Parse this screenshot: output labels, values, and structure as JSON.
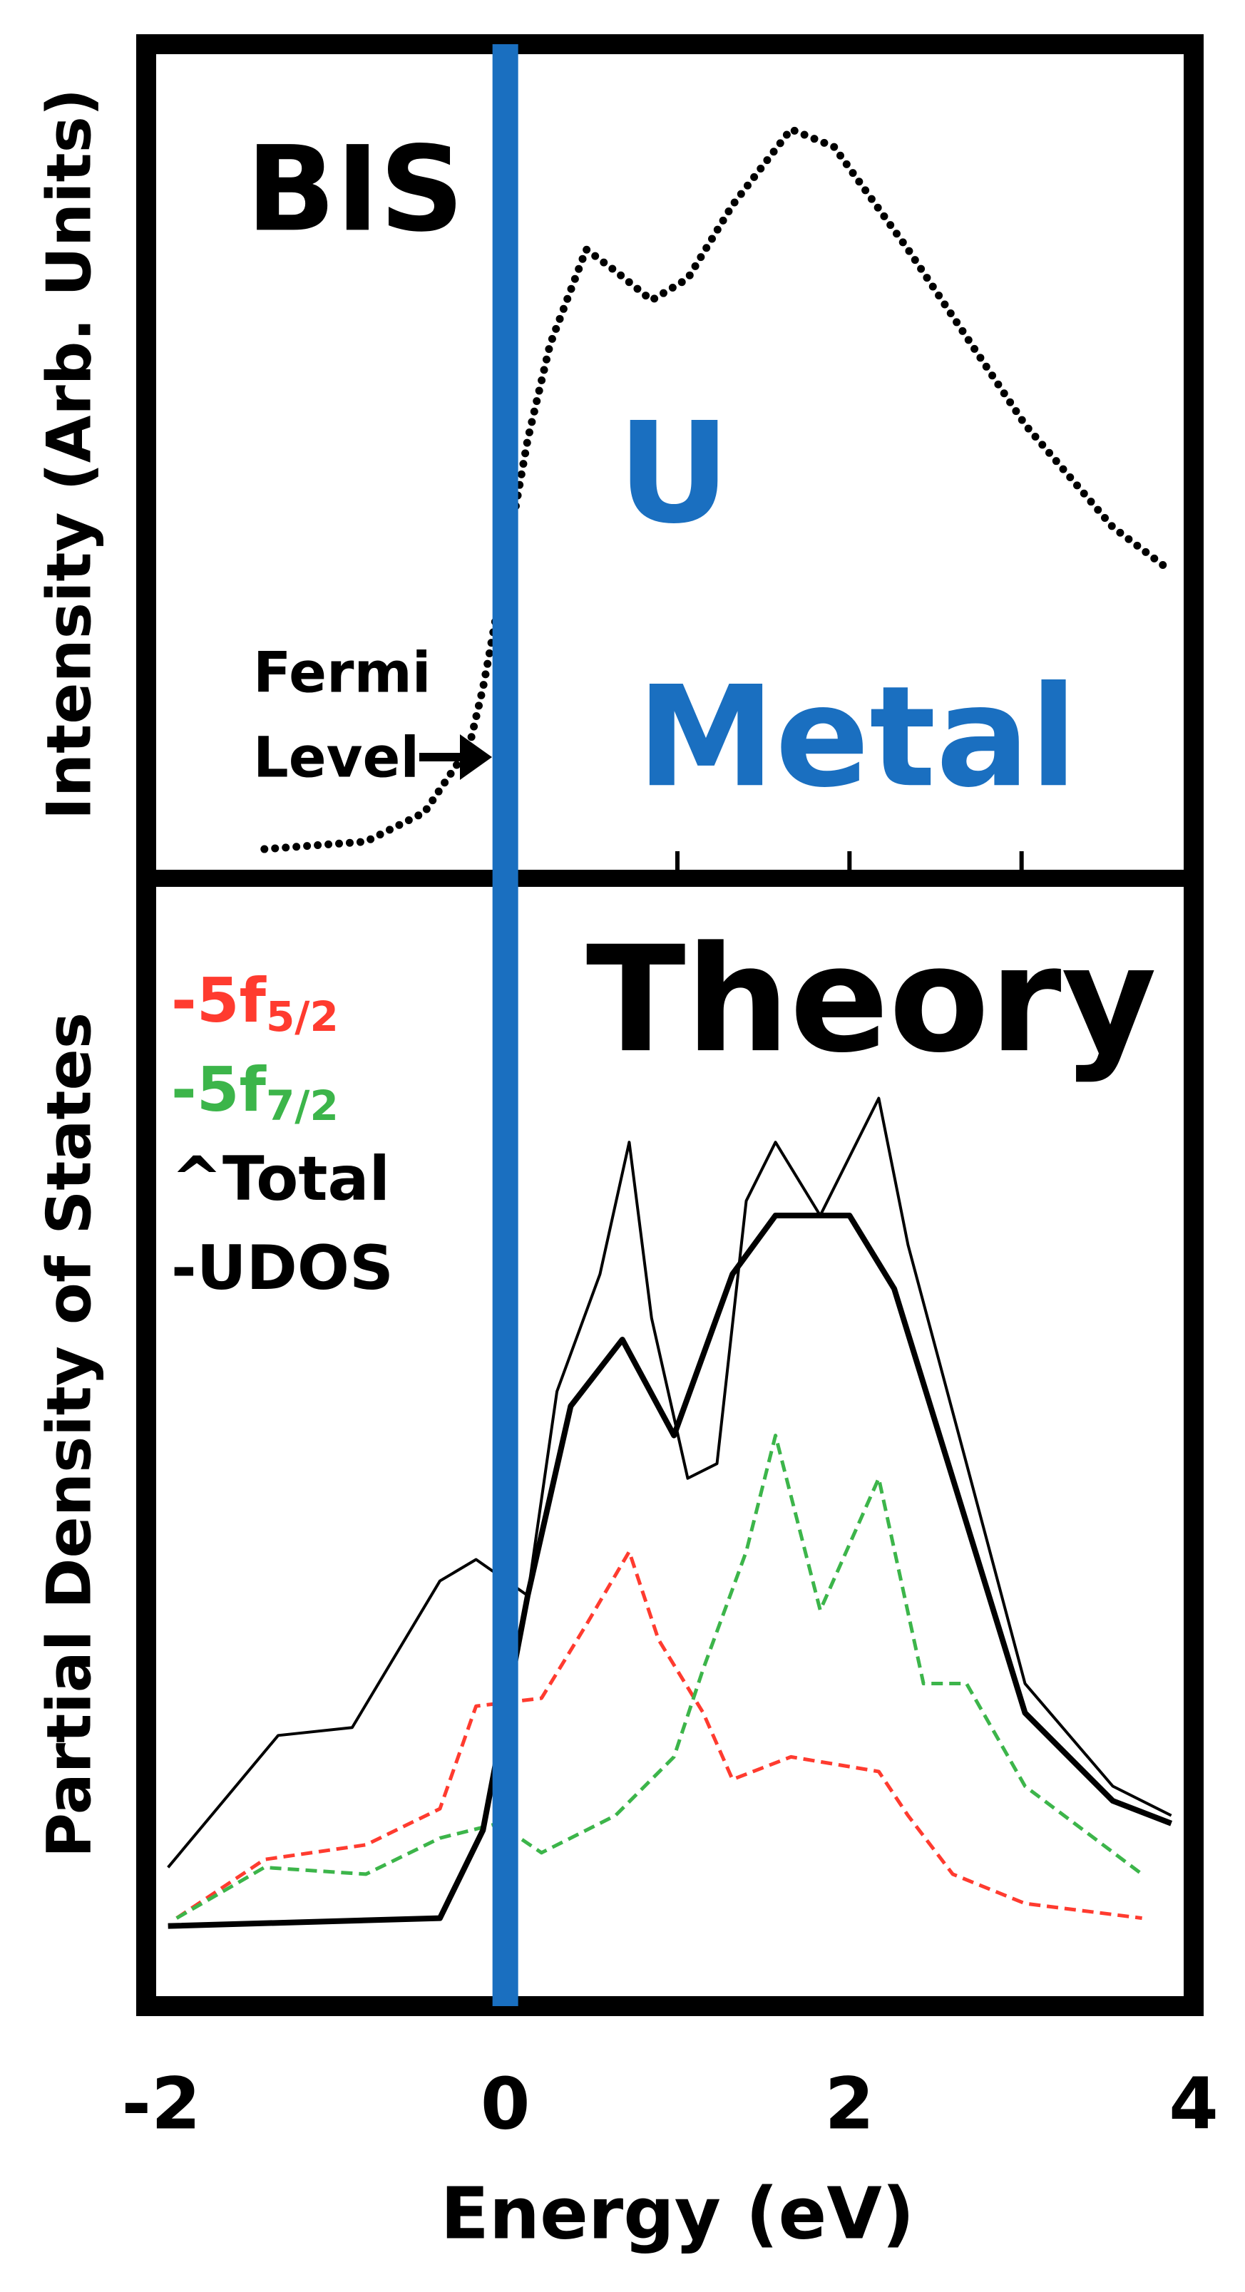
{
  "chart_data": [
    {
      "type": "line",
      "title": "BIS",
      "ylabel": "Intensity (Arb. Units)",
      "annotations": {
        "sample_line1": "U",
        "sample_line2": "Metal",
        "fermi_line1": "Fermi",
        "fermi_line2": "Level"
      },
      "xlim": [
        -2,
        4
      ],
      "ylim": [
        0,
        100
      ],
      "xticks": [
        1,
        2,
        3
      ],
      "fermi_level": 0,
      "fermi_color": "#1a6fc0",
      "series": [
        {
          "color": "#000000",
          "style": "dotted",
          "x": [
            -1.4,
            -0.81,
            -0.47,
            -0.21,
            -0.13,
            -0.09,
            0.13,
            0.26,
            0.47,
            0.64,
            0.85,
            1.06,
            1.32,
            1.66,
            1.91,
            2.34,
            3.02,
            3.53,
            3.87
          ],
          "values": [
            3.5,
            4.4,
            7.9,
            15.8,
            22.8,
            27.2,
            52.6,
            64,
            75.4,
            72.8,
            69.3,
            71.9,
            80.7,
            89.8,
            87.7,
            75.4,
            54.4,
            42.1,
            36.8
          ]
        }
      ]
    },
    {
      "type": "line",
      "title": "Theory",
      "ylabel": "Partial Density of States",
      "xlabel": "Energy (eV)",
      "xlim": [
        -2,
        4
      ],
      "ylim": [
        0,
        100
      ],
      "xticks": [
        -2,
        0,
        2,
        4
      ],
      "series": [
        {
          "name": "-5f",
          "name_subscript": "5/2",
          "color": "#ff3b2f",
          "style": "dashed",
          "x": [
            -1.91,
            -1.4,
            -0.81,
            -0.38,
            -0.17,
            0.21,
            0.47,
            0.72,
            0.89,
            1.15,
            1.32,
            1.66,
            2.17,
            2.34,
            2.6,
            3.02,
            3.7
          ],
          "values": [
            7.8,
            13,
            14.3,
            17.5,
            26.6,
            27.3,
            33.8,
            40.3,
            32.5,
            26,
            20.1,
            22.1,
            20.8,
            16.9,
            11.7,
            9.1,
            7.8
          ]
        },
        {
          "name": "-5f",
          "name_subscript": "7/2",
          "color": "#3cb54a",
          "style": "dashed",
          "x": [
            -1.91,
            -1.4,
            -0.81,
            -0.38,
            -0.04,
            0.21,
            0.64,
            0.98,
            1.15,
            1.4,
            1.57,
            1.83,
            2.17,
            2.43,
            2.68,
            3.02,
            3.7
          ],
          "values": [
            7.8,
            12.3,
            11.7,
            14.9,
            16.2,
            13.6,
            16.9,
            22.1,
            29.9,
            40.3,
            50.6,
            35.1,
            46.8,
            28.6,
            28.6,
            19.5,
            11.7
          ]
        },
        {
          "name": "^Total",
          "color": "#000000",
          "style": "thin",
          "x": [
            -1.96,
            -1.32,
            -0.89,
            -0.38,
            -0.17,
            0.13,
            0.3,
            0.55,
            0.72,
            0.85,
            1.06,
            1.23,
            1.4,
            1.57,
            1.83,
            2.0,
            2.17,
            2.34,
            2.68,
            3.02,
            3.53,
            3.87
          ],
          "values": [
            12.3,
            24,
            24.7,
            37.7,
            39.6,
            36.4,
            54.5,
            64.9,
            76.6,
            61,
            46.8,
            48.1,
            71.4,
            76.6,
            70.1,
            75.3,
            80.5,
            67.5,
            48.1,
            28.6,
            19.5,
            16.9
          ]
        },
        {
          "name": "-UDOS",
          "color": "#000000",
          "style": "thick",
          "x": [
            -1.96,
            -0.38,
            -0.13,
            0.13,
            0.38,
            0.68,
            0.98,
            1.32,
            1.57,
            2.0,
            2.26,
            2.6,
            3.02,
            3.53,
            3.87
          ],
          "values": [
            7.1,
            7.8,
            15.6,
            36.4,
            53.2,
            59.1,
            50.6,
            64.9,
            70.1,
            70.1,
            63.6,
            46.8,
            26,
            18.2,
            16.2
          ]
        }
      ]
    }
  ]
}
